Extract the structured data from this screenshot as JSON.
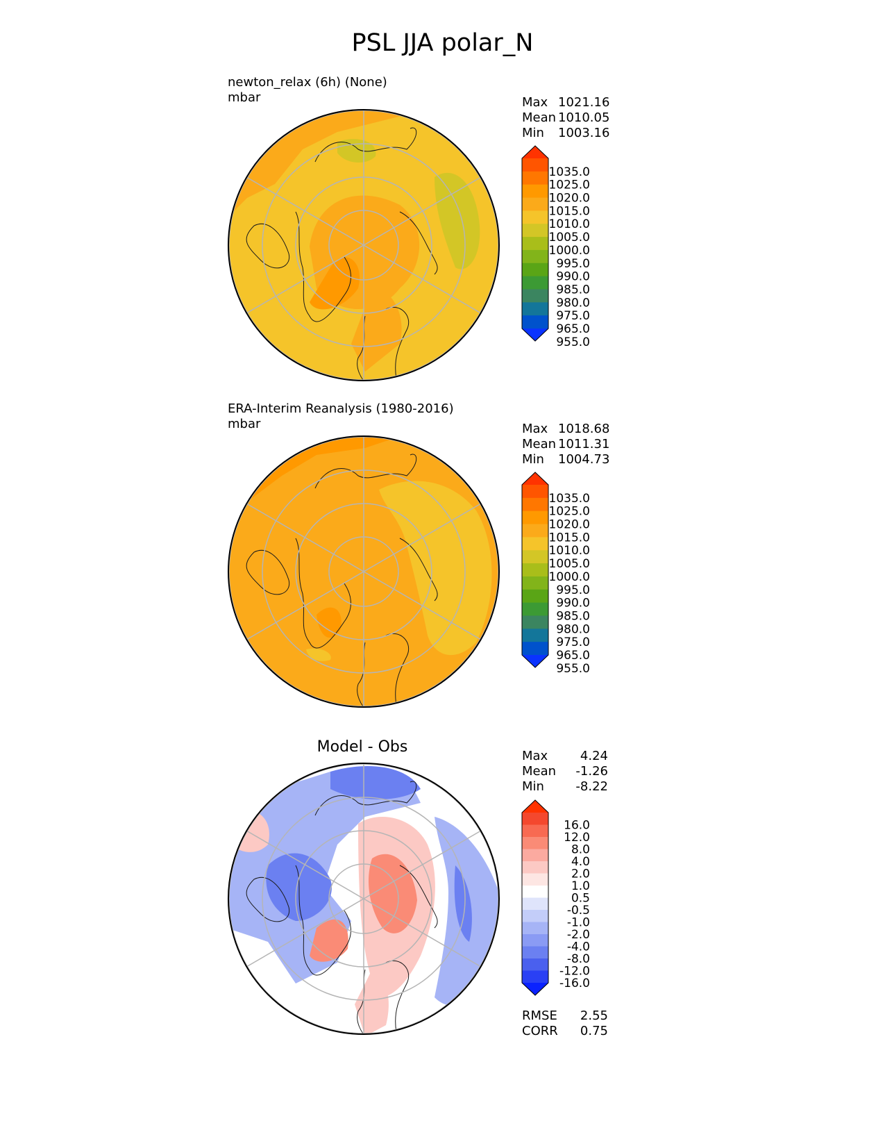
{
  "title": "PSL JJA polar_N",
  "panels": [
    {
      "id": "test",
      "title_line1": "newton_relax (6h) (None)",
      "units": "mbar",
      "stats": [
        {
          "label": "Max",
          "value": "1021.16"
        },
        {
          "label": "Mean",
          "value": "1010.05"
        },
        {
          "label": "Min",
          "value": "1003.16"
        }
      ],
      "colorbar": {
        "labels": [
          "1035.0",
          "1025.0",
          "1020.0",
          "1015.0",
          "1010.0",
          "1005.0",
          "1000.0",
          "995.0",
          "990.0",
          "985.0",
          "980.0",
          "975.0",
          "965.0",
          "955.0"
        ],
        "colors": [
          "#ff3300",
          "#ff5500",
          "#ff7700",
          "#ff9900",
          "#fbaa1a",
          "#f5c42a",
          "#d3c626",
          "#a9be1a",
          "#82b41a",
          "#5aa516",
          "#3c9a34",
          "#3b8560",
          "#13769a",
          "#0052cc",
          "#0a33ff"
        ]
      },
      "base_color": "#f5c42a"
    },
    {
      "id": "reference",
      "title_line1": "ERA-Interim Reanalysis (1980-2016)",
      "units": "mbar",
      "stats": [
        {
          "label": "Max",
          "value": "1018.68"
        },
        {
          "label": "Mean",
          "value": "1011.31"
        },
        {
          "label": "Min",
          "value": "1004.73"
        }
      ],
      "colorbar": {
        "labels": [
          "1035.0",
          "1025.0",
          "1020.0",
          "1015.0",
          "1010.0",
          "1005.0",
          "1000.0",
          "995.0",
          "990.0",
          "985.0",
          "980.0",
          "975.0",
          "965.0",
          "955.0"
        ],
        "colors": [
          "#ff3300",
          "#ff5500",
          "#ff7700",
          "#ff9900",
          "#fbaa1a",
          "#f5c42a",
          "#d3c626",
          "#a9be1a",
          "#82b41a",
          "#5aa516",
          "#3c9a34",
          "#3b8560",
          "#13769a",
          "#0052cc",
          "#0a33ff"
        ]
      },
      "base_color": "#fbaa1a"
    },
    {
      "id": "diff",
      "center_title": "Model - Obs",
      "stats": [
        {
          "label": "Max",
          "value": "4.24"
        },
        {
          "label": "Mean",
          "value": "-1.26"
        },
        {
          "label": "Min",
          "value": "-8.22"
        }
      ],
      "colorbar": {
        "labels": [
          "16.0",
          "12.0",
          "8.0",
          "4.0",
          "2.0",
          "1.0",
          "0.5",
          "-0.5",
          "-1.0",
          "-2.0",
          "-4.0",
          "-8.0",
          "-12.0",
          "-16.0"
        ],
        "colors": [
          "#ff3300",
          "#f4482e",
          "#f86a52",
          "#fa8b76",
          "#fbaaa0",
          "#fcc9c4",
          "#fde6e3",
          "#ffffff",
          "#dfe4fb",
          "#c3cdf9",
          "#a6b4f6",
          "#8a9bf4",
          "#6b80f1",
          "#4a60ee",
          "#2a40f4",
          "#0a22ff"
        ]
      },
      "error_stats": [
        {
          "label": "RMSE",
          "value": "2.55"
        },
        {
          "label": "CORR",
          "value": "0.75"
        }
      ],
      "base_color": "#ffffff"
    }
  ]
}
